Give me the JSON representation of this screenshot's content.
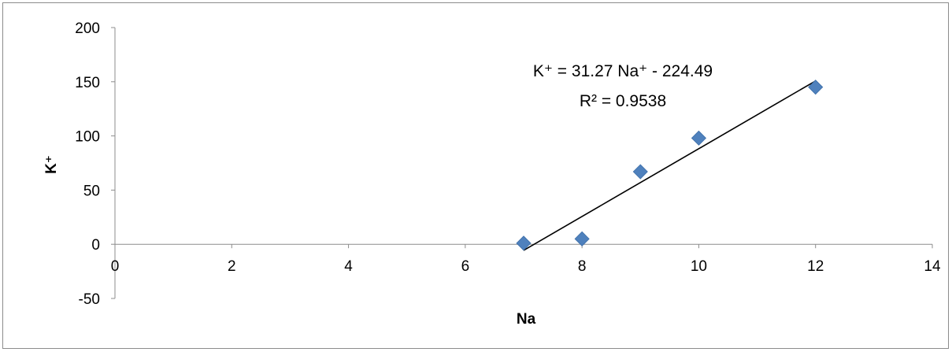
{
  "chart_data": {
    "type": "scatter",
    "xlabel": "Na",
    "ylabel": "K⁺",
    "xlim": [
      0,
      14
    ],
    "ylim": [
      -50,
      200
    ],
    "xticks": [
      0,
      2,
      4,
      6,
      8,
      10,
      12,
      14
    ],
    "yticks": [
      -50,
      0,
      50,
      100,
      150,
      200
    ],
    "xtick_labels": [
      "0",
      "2",
      "4",
      "6",
      "8",
      "10",
      "12",
      "14"
    ],
    "ytick_labels": [
      "-50",
      "0",
      "50",
      "100",
      "150",
      "200"
    ],
    "grid": false,
    "legend": "none",
    "series": [
      {
        "x": [
          7,
          8,
          9,
          10,
          12
        ],
        "y": [
          1,
          5,
          67,
          98,
          145
        ],
        "marker": "diamond",
        "color": "#4F81BD"
      }
    ],
    "trendline": {
      "type": "linear",
      "slope": 31.27,
      "intercept": -224.49,
      "x_range": [
        7,
        12
      ],
      "color": "#000000"
    },
    "annotations": {
      "equation": "K⁺ = 31.27 Na⁺  - 224.49",
      "r_squared": "R² = 0.9538"
    }
  }
}
